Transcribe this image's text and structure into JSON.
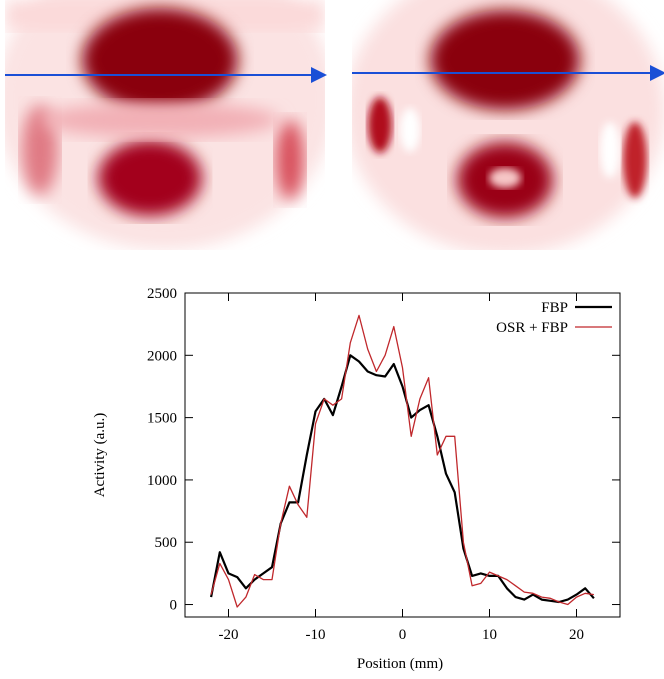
{
  "chart_data": {
    "type": "line",
    "x_label": "Position (mm)",
    "y_label": "Activity (a.u.)",
    "x": [
      -22,
      -21,
      -20,
      -19,
      -18,
      -17,
      -16,
      -15,
      -14,
      -13,
      -12,
      -11,
      -10,
      -9,
      -8,
      -7,
      -6,
      -5,
      -4,
      -3,
      -2,
      -1,
      0,
      1,
      2,
      3,
      4,
      5,
      6,
      7,
      8,
      9,
      10,
      11,
      12,
      13,
      14,
      15,
      16,
      17,
      18,
      19,
      20,
      21,
      22
    ],
    "series": [
      {
        "name": "FBP",
        "color": "#000000",
        "values": [
          60,
          420,
          250,
          220,
          130,
          200,
          250,
          300,
          650,
          820,
          820,
          1200,
          1550,
          1650,
          1520,
          1750,
          2000,
          1950,
          1870,
          1840,
          1830,
          1930,
          1750,
          1500,
          1560,
          1600,
          1350,
          1050,
          900,
          450,
          230,
          250,
          230,
          230,
          130,
          60,
          40,
          80,
          40,
          30,
          20,
          40,
          80,
          130,
          50
        ]
      },
      {
        "name": "OSR + FBP",
        "color": "#c0282c",
        "values": [
          80,
          330,
          200,
          -20,
          60,
          240,
          200,
          200,
          650,
          950,
          800,
          700,
          1450,
          1650,
          1600,
          1650,
          2100,
          2320,
          2050,
          1870,
          2000,
          2230,
          1900,
          1350,
          1650,
          1820,
          1200,
          1350,
          1350,
          500,
          150,
          170,
          260,
          230,
          200,
          150,
          100,
          90,
          60,
          50,
          20,
          0,
          60,
          90,
          80
        ]
      }
    ],
    "xlim": [
      -25,
      25
    ],
    "xticks": [
      -20,
      -10,
      0,
      10,
      20
    ],
    "ylim": [
      -100,
      2500
    ],
    "yticks": [
      0,
      500,
      1000,
      1500,
      2000,
      2500
    ],
    "legend": "upper-right"
  }
}
